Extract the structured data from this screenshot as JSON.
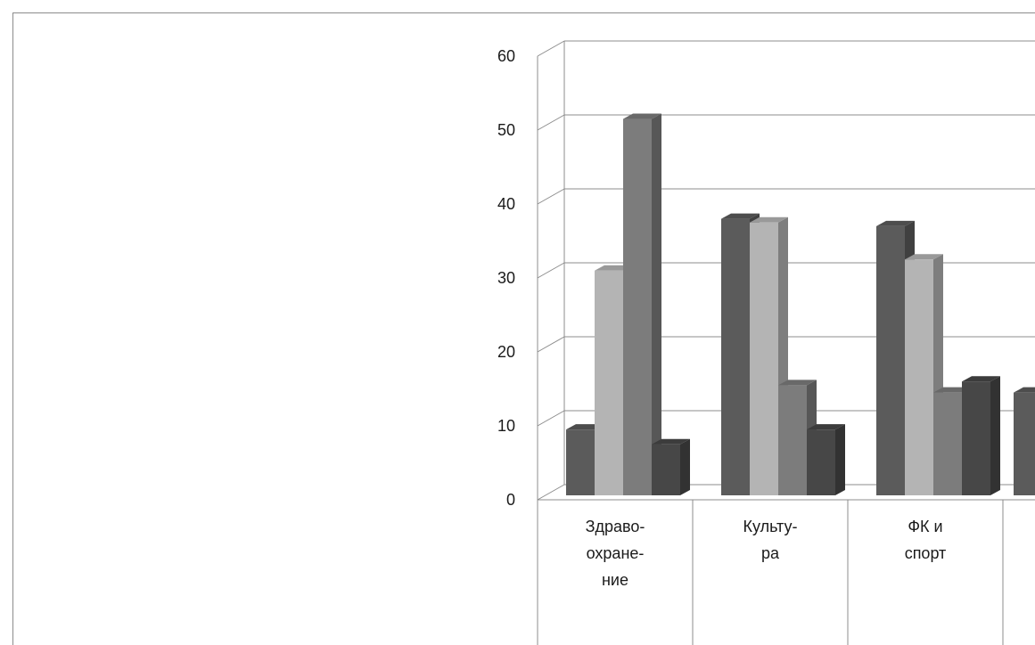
{
  "chart_data": {
    "type": "bar",
    "style": "3d-clustered-column",
    "ylim": [
      0,
      60
    ],
    "yticks": [
      "0",
      "10",
      "20",
      "30",
      "40",
      "50",
      "60"
    ],
    "grid": true,
    "categories": [
      {
        "lines": [
          "Здраво-",
          "охране-",
          "ние"
        ]
      },
      {
        "lines": [
          "Культу-",
          "ра"
        ]
      },
      {
        "lines": [
          "ФК и",
          "спорт"
        ]
      }
    ],
    "series": [
      {
        "color": "#5b5b5b",
        "values": [
          9.5,
          38,
          37
        ]
      },
      {
        "color": "#b4b4b4",
        "values": [
          31,
          37.5,
          32.5
        ]
      },
      {
        "color": "#7c7c7c",
        "values": [
          51.5,
          15.5,
          14.5
        ]
      },
      {
        "color": "#474747",
        "values": [
          7.5,
          9.5,
          16
        ]
      }
    ],
    "partial_fourth_category_series1_value": 14.5
  }
}
